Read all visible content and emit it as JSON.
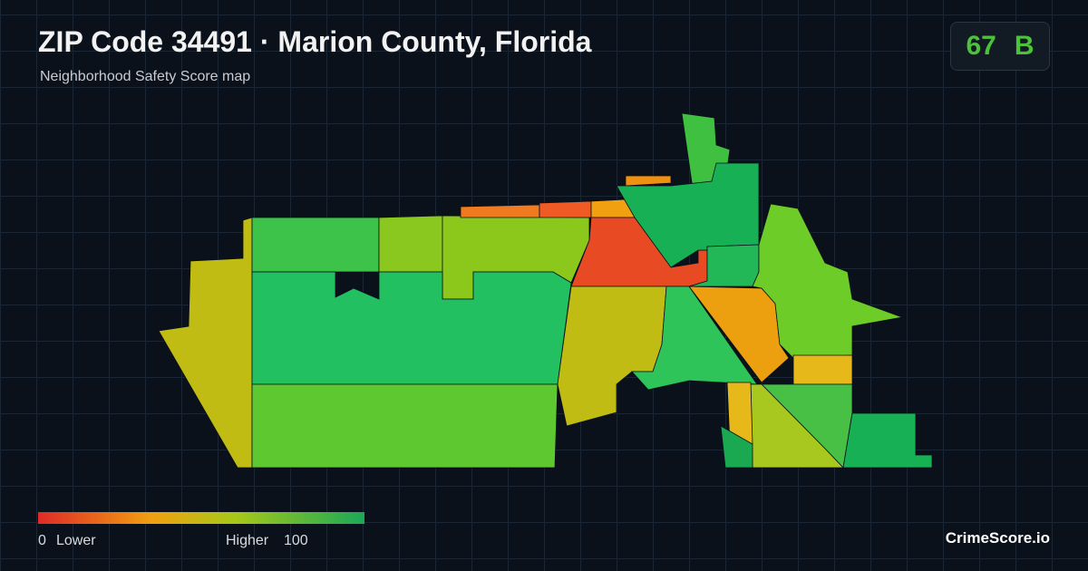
{
  "header": {
    "title": "ZIP Code 34491 · Marion County, Florida",
    "subtitle": "Neighborhood Safety Score map"
  },
  "score": {
    "value": 67,
    "grade": "B"
  },
  "legend": {
    "min": 0,
    "min_label": "Lower",
    "max_label": "Higher",
    "max": 100
  },
  "brand": "CrimeScore.io"
}
